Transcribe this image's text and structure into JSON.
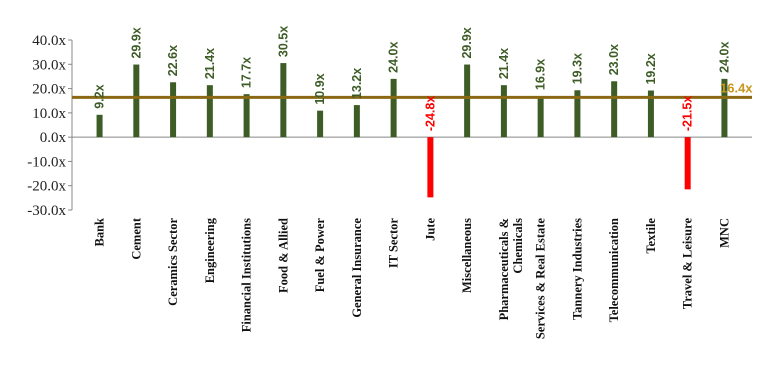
{
  "chart_data": {
    "type": "bar",
    "title": "",
    "xlabel": "",
    "ylabel": "",
    "ylim": [
      -30,
      40
    ],
    "y_ticks": [
      "40.0x",
      "30.0x",
      "20.0x",
      "10.0x",
      "0.0x",
      "-10.0x",
      "-20.0x",
      "-30.0x"
    ],
    "y_tick_values": [
      40,
      30,
      20,
      10,
      0,
      -10,
      -20,
      -30
    ],
    "grid": false,
    "legend": "none",
    "categories": [
      "Bank",
      "Cement",
      "Ceramics Sector",
      "Engineering",
      "Financial Institutions",
      "Food & Allied",
      "Fuel & Power",
      "General Insurance",
      "IT Sector",
      "Jute",
      "Miscellaneous",
      "Pharmaceuticals & Chemicals",
      "Services & Real Estate",
      "Tannery Industries",
      "Telecommunication",
      "Textile",
      "Travel & Leisure",
      "MNC"
    ],
    "values": [
      9.2,
      29.9,
      22.6,
      21.4,
      17.7,
      30.5,
      10.9,
      13.2,
      24.0,
      -24.8,
      29.9,
      21.4,
      16.9,
      19.3,
      23.0,
      19.2,
      -21.5,
      24.0
    ],
    "data_labels": [
      "9.2x",
      "29.9x",
      "22.6x",
      "21.4x",
      "17.7x",
      "30.5x",
      "10.9x",
      "13.2x",
      "24.0x",
      "-24.8x",
      "29.9x",
      "21.4x",
      "16.9x",
      "19.3x",
      "23.0x",
      "19.2x",
      "-21.5x",
      "24.0x"
    ],
    "reference_line": {
      "value": 16.4,
      "label": "16.4x"
    },
    "colors": {
      "positive": "#3d5c26",
      "negative": "#ff0000",
      "reference": "#8b6914",
      "reference_label": "#c8961e",
      "axis": "#888888"
    }
  }
}
